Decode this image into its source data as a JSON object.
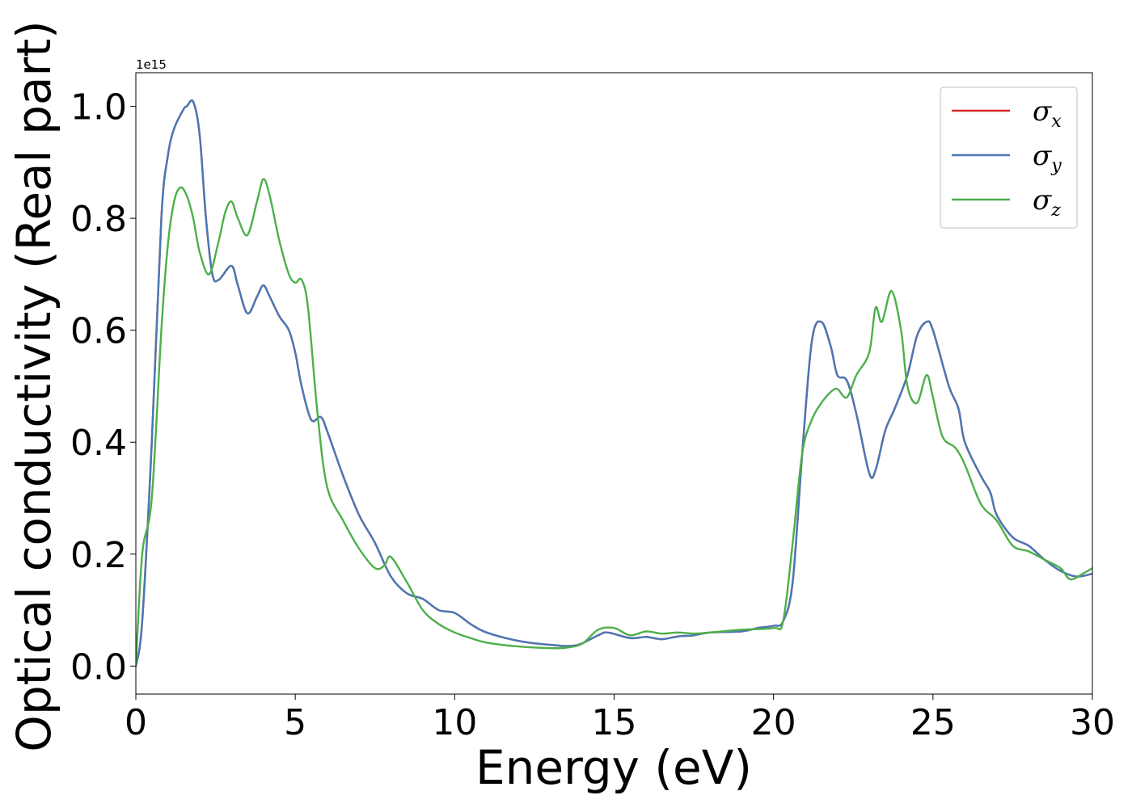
{
  "chart_data": {
    "type": "line",
    "xlabel": "Energy (eV)",
    "ylabel": "Optical conductivity (Real part)",
    "y_offset_label": "1e15",
    "xlim": [
      0,
      30
    ],
    "ylim": [
      -0.05,
      1.06
    ],
    "xticks": [
      0,
      5,
      10,
      15,
      20,
      25,
      30
    ],
    "xtick_labels": [
      "0",
      "5",
      "10",
      "15",
      "20",
      "25",
      "30"
    ],
    "yticks": [
      0.0,
      0.2,
      0.4,
      0.6,
      0.8,
      1.0
    ],
    "ytick_labels": [
      "0.0",
      "0.2",
      "0.4",
      "0.6",
      "0.8",
      "1.0"
    ],
    "grid": false,
    "legend_position": "top-right",
    "series": [
      {
        "name": "σx",
        "symbol": "σ",
        "subscript": "x",
        "color": "#d62728",
        "x": [
          0,
          0.2,
          0.5,
          0.8,
          1.0,
          1.2,
          1.5,
          1.6,
          1.8,
          2.0,
          2.2,
          2.4,
          2.6,
          3.0,
          3.2,
          3.5,
          3.8,
          4.0,
          4.2,
          4.5,
          4.8,
          5.0,
          5.2,
          5.5,
          5.8,
          6.0,
          6.5,
          7.0,
          7.5,
          8.0,
          8.5,
          9.0,
          9.5,
          10.0,
          10.5,
          11.0,
          12.0,
          13.0,
          13.8,
          14.5,
          14.8,
          15.5,
          16.0,
          16.5,
          17.0,
          17.5,
          18.0,
          19.0,
          19.5,
          20.0,
          20.3,
          20.6,
          20.9,
          21.2,
          21.5,
          21.8,
          22.0,
          22.3,
          22.6,
          23.0,
          23.2,
          23.5,
          23.8,
          24.2,
          24.5,
          24.8,
          25.0,
          25.5,
          25.8,
          26.0,
          26.5,
          26.8,
          27.0,
          27.5,
          28.0,
          28.5,
          29.0,
          29.5,
          30.0
        ],
        "values": [
          0.0,
          0.08,
          0.4,
          0.8,
          0.91,
          0.96,
          0.995,
          1.0,
          1.008,
          0.95,
          0.8,
          0.7,
          0.69,
          0.715,
          0.68,
          0.63,
          0.66,
          0.68,
          0.66,
          0.625,
          0.6,
          0.56,
          0.5,
          0.44,
          0.445,
          0.42,
          0.34,
          0.27,
          0.22,
          0.16,
          0.13,
          0.12,
          0.1,
          0.095,
          0.075,
          0.06,
          0.045,
          0.038,
          0.037,
          0.055,
          0.06,
          0.05,
          0.052,
          0.048,
          0.053,
          0.055,
          0.06,
          0.062,
          0.068,
          0.072,
          0.08,
          0.15,
          0.38,
          0.58,
          0.615,
          0.57,
          0.52,
          0.51,
          0.45,
          0.345,
          0.35,
          0.42,
          0.46,
          0.52,
          0.59,
          0.615,
          0.6,
          0.5,
          0.46,
          0.4,
          0.34,
          0.31,
          0.27,
          0.23,
          0.215,
          0.19,
          0.17,
          0.16,
          0.165
        ]
      },
      {
        "name": "σy",
        "symbol": "σ",
        "subscript": "y",
        "color": "#4878b6",
        "x": [
          0,
          0.2,
          0.5,
          0.8,
          1.0,
          1.2,
          1.5,
          1.6,
          1.8,
          2.0,
          2.2,
          2.4,
          2.6,
          3.0,
          3.2,
          3.5,
          3.8,
          4.0,
          4.2,
          4.5,
          4.8,
          5.0,
          5.2,
          5.5,
          5.8,
          6.0,
          6.5,
          7.0,
          7.5,
          8.0,
          8.5,
          9.0,
          9.5,
          10.0,
          10.5,
          11.0,
          12.0,
          13.0,
          13.8,
          14.5,
          14.8,
          15.5,
          16.0,
          16.5,
          17.0,
          17.5,
          18.0,
          19.0,
          19.5,
          20.0,
          20.3,
          20.6,
          20.9,
          21.2,
          21.5,
          21.8,
          22.0,
          22.3,
          22.6,
          23.0,
          23.2,
          23.5,
          23.8,
          24.2,
          24.5,
          24.8,
          25.0,
          25.5,
          25.8,
          26.0,
          26.5,
          26.8,
          27.0,
          27.5,
          28.0,
          28.5,
          29.0,
          29.5,
          30.0
        ],
        "values": [
          0.0,
          0.08,
          0.4,
          0.8,
          0.91,
          0.96,
          0.995,
          1.0,
          1.008,
          0.95,
          0.8,
          0.7,
          0.69,
          0.715,
          0.68,
          0.63,
          0.66,
          0.68,
          0.66,
          0.625,
          0.6,
          0.56,
          0.5,
          0.44,
          0.445,
          0.42,
          0.34,
          0.27,
          0.22,
          0.16,
          0.13,
          0.12,
          0.1,
          0.095,
          0.075,
          0.06,
          0.045,
          0.038,
          0.037,
          0.055,
          0.06,
          0.05,
          0.052,
          0.048,
          0.053,
          0.055,
          0.06,
          0.062,
          0.068,
          0.072,
          0.08,
          0.15,
          0.38,
          0.58,
          0.615,
          0.57,
          0.52,
          0.51,
          0.45,
          0.345,
          0.35,
          0.42,
          0.46,
          0.52,
          0.59,
          0.615,
          0.6,
          0.5,
          0.46,
          0.4,
          0.34,
          0.31,
          0.27,
          0.23,
          0.215,
          0.19,
          0.17,
          0.16,
          0.165
        ]
      },
      {
        "name": "σz",
        "symbol": "σ",
        "subscript": "z",
        "color": "#4daf4a",
        "x": [
          0,
          0.2,
          0.5,
          0.8,
          1.0,
          1.2,
          1.4,
          1.6,
          1.8,
          2.0,
          2.3,
          2.6,
          2.8,
          3.0,
          3.2,
          3.5,
          3.8,
          4.0,
          4.2,
          4.5,
          4.8,
          5.0,
          5.2,
          5.4,
          5.7,
          6.0,
          6.5,
          7.0,
          7.5,
          7.8,
          8.0,
          8.5,
          9.0,
          9.5,
          10.0,
          10.5,
          11.0,
          12.0,
          13.0,
          13.5,
          14.0,
          14.5,
          15.0,
          15.5,
          16.0,
          16.5,
          17.0,
          17.5,
          18.0,
          19.0,
          20.0,
          20.3,
          20.6,
          20.9,
          21.2,
          21.5,
          21.8,
          22.0,
          22.3,
          22.6,
          23.0,
          23.2,
          23.4,
          23.7,
          24.0,
          24.2,
          24.5,
          24.8,
          25.0,
          25.3,
          25.7,
          26.0,
          26.5,
          27.0,
          27.5,
          28.0,
          28.5,
          29.0,
          29.3,
          29.7,
          30.0
        ],
        "values": [
          0.0,
          0.2,
          0.3,
          0.6,
          0.75,
          0.83,
          0.855,
          0.84,
          0.8,
          0.74,
          0.7,
          0.76,
          0.81,
          0.83,
          0.8,
          0.77,
          0.83,
          0.87,
          0.84,
          0.76,
          0.7,
          0.685,
          0.69,
          0.64,
          0.45,
          0.32,
          0.26,
          0.21,
          0.175,
          0.18,
          0.195,
          0.15,
          0.1,
          0.075,
          0.06,
          0.05,
          0.042,
          0.035,
          0.032,
          0.033,
          0.04,
          0.065,
          0.068,
          0.055,
          0.062,
          0.058,
          0.06,
          0.058,
          0.06,
          0.065,
          0.068,
          0.08,
          0.22,
          0.38,
          0.44,
          0.47,
          0.49,
          0.495,
          0.48,
          0.52,
          0.56,
          0.64,
          0.615,
          0.67,
          0.6,
          0.5,
          0.47,
          0.52,
          0.48,
          0.41,
          0.39,
          0.36,
          0.29,
          0.26,
          0.215,
          0.205,
          0.19,
          0.175,
          0.155,
          0.165,
          0.175
        ]
      }
    ]
  }
}
